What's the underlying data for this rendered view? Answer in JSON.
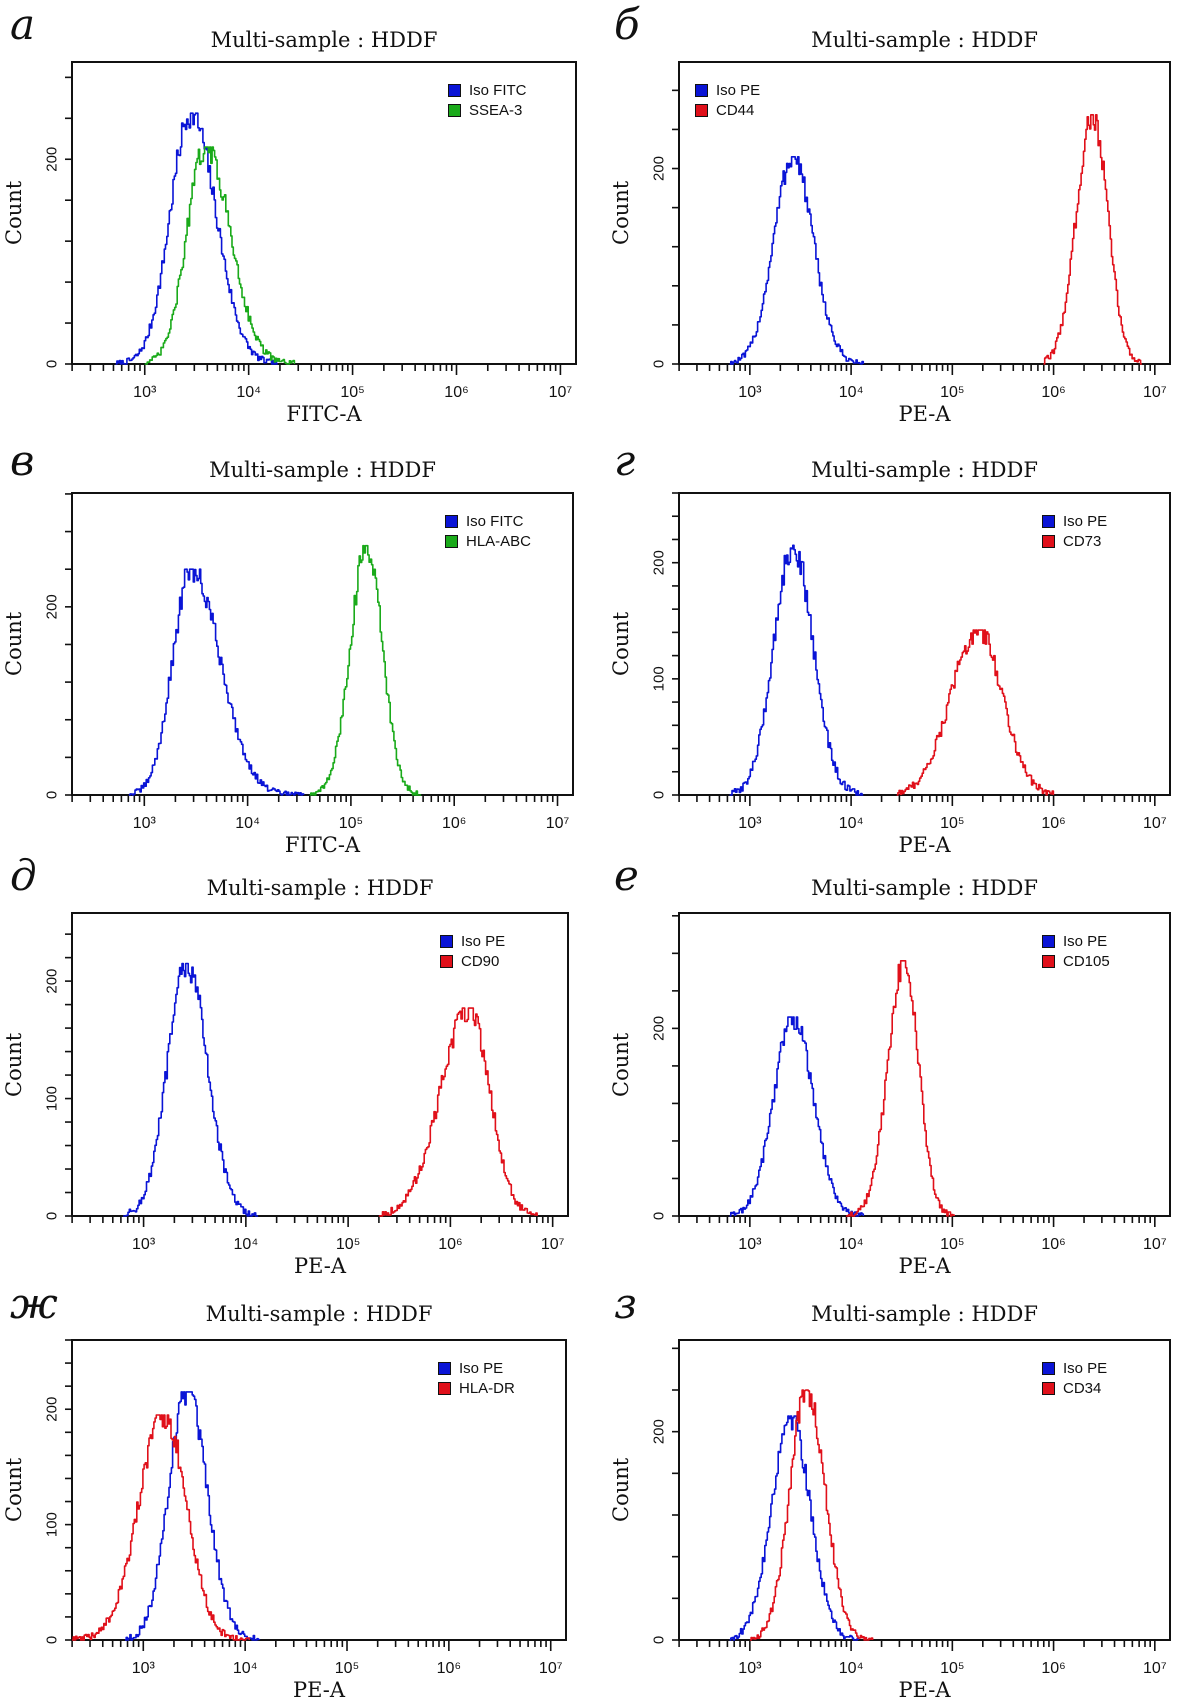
{
  "chart_data": [
    {
      "type": "line",
      "panel_label": "а",
      "title": "Multi-sample : HDDF",
      "xlabel": "FITC-A",
      "ylabel": "Count",
      "xscale": "log",
      "xlim_log10": [
        2.3,
        7.15
      ],
      "x_tick_labels": [
        "10³",
        "10⁴",
        "10⁵",
        "10⁶",
        "10⁷"
      ],
      "ylim": [
        0,
        295
      ],
      "y_tick_step": 40,
      "y_tick_labels": [
        0,
        200
      ],
      "legend_position": "top-right",
      "series": [
        {
          "name": "Iso FITC",
          "color": "#0a14d6",
          "peak_count": 245,
          "peak_log10": 3.44,
          "start_log10": 2.72,
          "end_log10": 4.28,
          "left_sd": 0.2,
          "right_sd": 0.24
        },
        {
          "name": "SSEA-3",
          "color": "#1aaa1a",
          "peak_count": 212,
          "peak_log10": 3.58,
          "start_log10": 3.0,
          "end_log10": 4.45,
          "left_sd": 0.18,
          "right_sd": 0.24
        }
      ]
    },
    {
      "type": "line",
      "panel_label": "б",
      "title": "Multi-sample : HDDF",
      "xlabel": "PE-A",
      "ylabel": "Count",
      "xscale": "log",
      "xlim_log10": [
        2.3,
        7.15
      ],
      "x_tick_labels": [
        "10³",
        "10⁴",
        "10⁵",
        "10⁶",
        "10⁷"
      ],
      "ylim": [
        0,
        309
      ],
      "y_tick_step": 40,
      "y_tick_labels": [
        0,
        200
      ],
      "legend_position": "top-left",
      "series": [
        {
          "name": "Iso PE",
          "color": "#0a14d6",
          "peak_count": 212,
          "peak_log10": 3.42,
          "start_log10": 2.8,
          "end_log10": 4.12,
          "left_sd": 0.19,
          "right_sd": 0.2
        },
        {
          "name": "CD44",
          "color": "#e0101a",
          "peak_count": 255,
          "peak_log10": 6.38,
          "start_log10": 5.9,
          "end_log10": 6.88,
          "left_sd": 0.16,
          "right_sd": 0.15
        }
      ]
    },
    {
      "type": "line",
      "panel_label": "в",
      "title": "Multi-sample : HDDF",
      "xlabel": "FITC-A",
      "ylabel": "Count",
      "xscale": "log",
      "xlim_log10": [
        2.3,
        7.15
      ],
      "x_tick_labels": [
        "10³",
        "10⁴",
        "10⁵",
        "10⁶",
        "10⁷"
      ],
      "ylim": [
        0,
        321
      ],
      "y_tick_step": 40,
      "y_tick_labels": [
        0,
        200
      ],
      "legend_position": "top-right",
      "series": [
        {
          "name": "Iso FITC",
          "color": "#0a14d6",
          "peak_count": 240,
          "peak_log10": 3.45,
          "start_log10": 2.85,
          "end_log10": 4.55,
          "left_sd": 0.18,
          "right_sd": 0.28
        },
        {
          "name": "HLA-ABC",
          "color": "#1aaa1a",
          "peak_count": 265,
          "peak_log10": 5.15,
          "start_log10": 4.6,
          "end_log10": 5.68,
          "left_sd": 0.16,
          "right_sd": 0.15
        }
      ]
    },
    {
      "type": "line",
      "panel_label": "г",
      "title": "Multi-sample : HDDF",
      "xlabel": "PE-A",
      "ylabel": "Count",
      "xscale": "log",
      "xlim_log10": [
        2.3,
        7.15
      ],
      "x_tick_labels": [
        "10³",
        "10⁴",
        "10⁵",
        "10⁶",
        "10⁷"
      ],
      "ylim": [
        0,
        260
      ],
      "y_tick_step": 20,
      "y_tick_labels": [
        0,
        100,
        200
      ],
      "legend_position": "top-right",
      "series": [
        {
          "name": "Iso PE",
          "color": "#0a14d6",
          "peak_count": 215,
          "peak_log10": 3.42,
          "start_log10": 2.8,
          "end_log10": 4.12,
          "left_sd": 0.19,
          "right_sd": 0.2
        },
        {
          "name": "CD73",
          "color": "#e0101a",
          "peak_count": 142,
          "peak_log10": 5.25,
          "start_log10": 4.45,
          "end_log10": 6.0,
          "left_sd": 0.27,
          "right_sd": 0.24
        }
      ]
    },
    {
      "type": "line",
      "panel_label": "д",
      "title": "Multi-sample : HDDF",
      "xlabel": "PE-A",
      "ylabel": "Count",
      "xscale": "log",
      "xlim_log10": [
        2.3,
        7.15
      ],
      "x_tick_labels": [
        "10³",
        "10⁴",
        "10⁵",
        "10⁶",
        "10⁷"
      ],
      "ylim": [
        0,
        258
      ],
      "y_tick_step": 20,
      "y_tick_labels": [
        0,
        100,
        200
      ],
      "legend_position": "top-right",
      "series": [
        {
          "name": "Iso PE",
          "color": "#0a14d6",
          "peak_count": 215,
          "peak_log10": 3.42,
          "start_log10": 2.8,
          "end_log10": 4.12,
          "left_sd": 0.19,
          "right_sd": 0.2
        },
        {
          "name": "CD90",
          "color": "#e0101a",
          "peak_count": 177,
          "peak_log10": 6.18,
          "start_log10": 5.3,
          "end_log10": 6.85,
          "left_sd": 0.28,
          "right_sd": 0.2
        }
      ]
    },
    {
      "type": "line",
      "panel_label": "е",
      "title": "Multi-sample : HDDF",
      "xlabel": "PE-A",
      "ylabel": "Count",
      "xscale": "log",
      "xlim_log10": [
        2.3,
        7.15
      ],
      "x_tick_labels": [
        "10³",
        "10⁴",
        "10⁵",
        "10⁶",
        "10⁷"
      ],
      "ylim": [
        0,
        323
      ],
      "y_tick_step": 40,
      "y_tick_labels": [
        0,
        200
      ],
      "legend_position": "top-right",
      "series": [
        {
          "name": "Iso PE",
          "color": "#0a14d6",
          "peak_count": 212,
          "peak_log10": 3.42,
          "start_log10": 2.8,
          "end_log10": 4.12,
          "left_sd": 0.19,
          "right_sd": 0.2
        },
        {
          "name": "CD105",
          "color": "#e0101a",
          "peak_count": 272,
          "peak_log10": 4.52,
          "start_log10": 3.95,
          "end_log10": 5.02,
          "left_sd": 0.16,
          "right_sd": 0.14
        }
      ]
    },
    {
      "type": "line",
      "panel_label": "ж",
      "title": "Multi-sample : HDDF",
      "xlabel": "PE-A",
      "ylabel": "Count",
      "xscale": "log",
      "xlim_log10": [
        2.3,
        7.15
      ],
      "x_tick_labels": [
        "10³",
        "10⁴",
        "10⁵",
        "10⁶",
        "10⁷"
      ],
      "ylim": [
        0,
        260
      ],
      "y_tick_step": 20,
      "y_tick_labels": [
        0,
        100,
        200
      ],
      "legend_position": "top-right",
      "series": [
        {
          "name": "Iso PE",
          "color": "#0a14d6",
          "peak_count": 215,
          "peak_log10": 3.42,
          "start_log10": 2.82,
          "end_log10": 4.15,
          "left_sd": 0.18,
          "right_sd": 0.2
        },
        {
          "name": "HLA-DR",
          "color": "#e0101a",
          "peak_count": 195,
          "peak_log10": 3.2,
          "start_log10": 2.3,
          "end_log10": 4.05,
          "left_sd": 0.25,
          "right_sd": 0.22
        }
      ]
    },
    {
      "type": "line",
      "panel_label": "з",
      "title": "Multi-sample : HDDF",
      "xlabel": "PE-A",
      "ylabel": "Count",
      "xscale": "log",
      "xlim_log10": [
        2.3,
        7.15
      ],
      "x_tick_labels": [
        "10³",
        "10⁴",
        "10⁵",
        "10⁶",
        "10⁷"
      ],
      "ylim": [
        0,
        288
      ],
      "y_tick_step": 40,
      "y_tick_labels": [
        0,
        200
      ],
      "legend_position": "top-right",
      "series": [
        {
          "name": "Iso PE",
          "color": "#0a14d6",
          "peak_count": 215,
          "peak_log10": 3.4,
          "start_log10": 2.8,
          "end_log10": 4.08,
          "left_sd": 0.19,
          "right_sd": 0.19
        },
        {
          "name": "CD34",
          "color": "#e0101a",
          "peak_count": 240,
          "peak_log10": 3.56,
          "start_log10": 3.0,
          "end_log10": 4.22,
          "left_sd": 0.17,
          "right_sd": 0.18
        }
      ]
    }
  ]
}
